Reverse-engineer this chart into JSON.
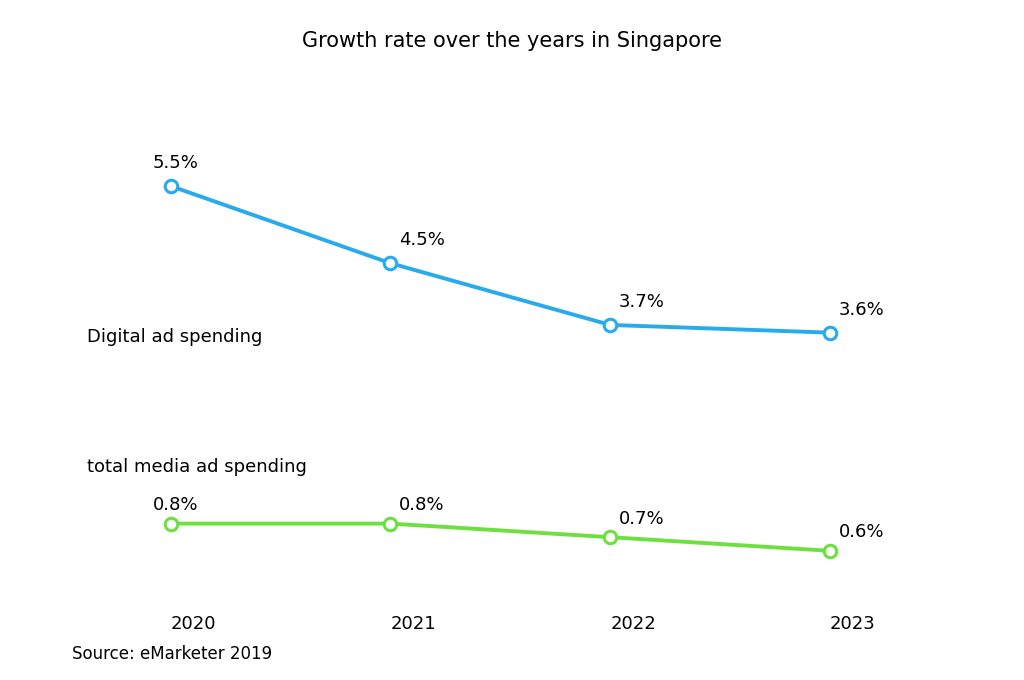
{
  "title": "Growth rate over the years in Singapore",
  "years": [
    2020,
    2021,
    2022,
    2023
  ],
  "digital_ad": [
    5.5,
    4.5,
    3.7,
    3.6
  ],
  "total_media": [
    0.8,
    0.8,
    0.7,
    0.6
  ],
  "digital_color": "#29aaec",
  "total_media_color": "#6de040",
  "background_color": "#ffffff",
  "digital_label": "Digital ad spending",
  "total_media_label": "total media ad spending",
  "source_text": "Source: eMarketer 2019",
  "title_fontsize": 15,
  "label_fontsize": 13,
  "annotation_fontsize": 13,
  "source_fontsize": 12,
  "year_fontsize": 13,
  "marker_size": 9,
  "line_width": 2.8
}
